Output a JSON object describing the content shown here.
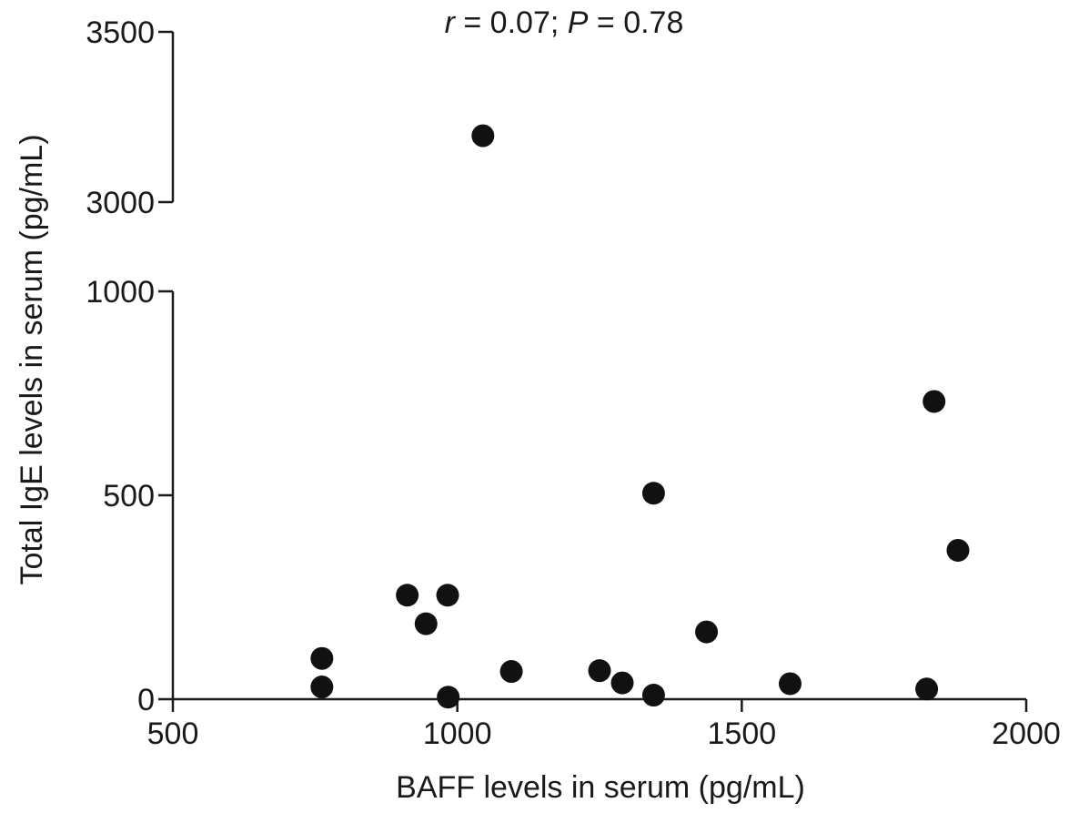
{
  "chart_data": {
    "type": "scatter",
    "annotation": {
      "r_symbol": "r",
      "r_text": " = 0.07; ",
      "p_symbol": "P",
      "p_text": " = 0.78"
    },
    "xlabel": "BAFF levels in serum (pg/mL)",
    "ylabel": "Total IgE levels in serum (pg/mL)",
    "xlim": [
      500,
      2000
    ],
    "x_ticks": [
      500,
      1000,
      1500,
      2000
    ],
    "x_tick_labels": [
      "500",
      "1000",
      "1500",
      "2000"
    ],
    "y_axis_broken": true,
    "y_lower_segment": {
      "range": [
        0,
        1000
      ],
      "ticks": [
        0,
        500,
        1000
      ]
    },
    "y_upper_segment": {
      "range": [
        3000,
        3500
      ],
      "ticks": [
        3000,
        3500
      ]
    },
    "y_tick_labels": [
      "0",
      "500",
      "1000",
      "3000",
      "3500"
    ],
    "grid": false,
    "legend": "none",
    "marker_color": "#111111",
    "points": [
      {
        "x": 762,
        "y": 100
      },
      {
        "x": 762,
        "y": 30
      },
      {
        "x": 912,
        "y": 255
      },
      {
        "x": 945,
        "y": 185
      },
      {
        "x": 983,
        "y": 255
      },
      {
        "x": 984,
        "y": 5
      },
      {
        "x": 1045,
        "y": 3195
      },
      {
        "x": 1095,
        "y": 68
      },
      {
        "x": 1250,
        "y": 70
      },
      {
        "x": 1290,
        "y": 40
      },
      {
        "x": 1345,
        "y": 505
      },
      {
        "x": 1345,
        "y": 10
      },
      {
        "x": 1438,
        "y": 165
      },
      {
        "x": 1585,
        "y": 38
      },
      {
        "x": 1825,
        "y": 25
      },
      {
        "x": 1838,
        "y": 730
      },
      {
        "x": 1880,
        "y": 365
      }
    ]
  }
}
